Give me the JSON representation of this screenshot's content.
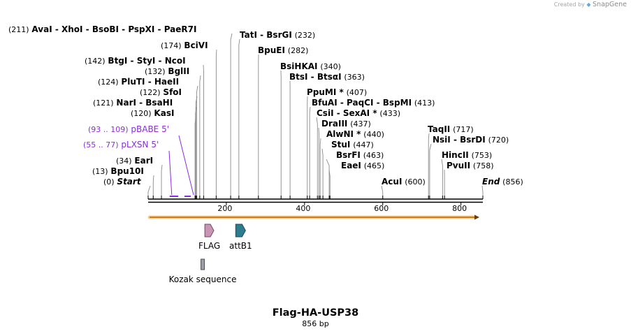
{
  "credit": {
    "prefix": "Created by",
    "brand": "SnapGene"
  },
  "plasmid": {
    "name": "Flag-HA-USP38",
    "length_label": "856 bp",
    "length": 856
  },
  "colors": {
    "backbone": "#000000",
    "feature_arrow": "#f5a623",
    "primer": "#8b2be2",
    "flag": "#c896b4",
    "attB1": "#2e7d8e",
    "kozak": "#9aa0a6"
  },
  "axis": {
    "ticks": [
      200,
      400,
      600,
      800
    ]
  },
  "site_labels": [
    {
      "id": "aval",
      "pos": "(211)",
      "name": "AvaI  - XhoI  - BsoBI  - PspXI  - PaeR7I",
      "cut": 211
    },
    {
      "id": "bcivi",
      "pos": "(174)",
      "name": "BciVI",
      "cut": 174
    },
    {
      "id": "tati",
      "pos": "(232)",
      "name": "TatI  - BsrGI",
      "cut": 232
    },
    {
      "id": "bpuei",
      "pos": "(282)",
      "name": "BpuEI",
      "cut": 282
    },
    {
      "id": "btgi",
      "pos": "(142)",
      "name": "BtgI  - StyI  - NcoI",
      "cut": 142
    },
    {
      "id": "bsihkai",
      "pos": "(340)",
      "name": "BsiHKAI",
      "cut": 340
    },
    {
      "id": "bglii",
      "pos": "(132)",
      "name": "BglII",
      "cut": 132
    },
    {
      "id": "btsi",
      "pos": "(363)",
      "name": "BtsI  - BtsαI",
      "cut": 363
    },
    {
      "id": "pluti",
      "pos": "(124)",
      "name": "PluTI  - HaeII",
      "cut": 124
    },
    {
      "id": "sfoi",
      "pos": "(122)",
      "name": "SfoI",
      "cut": 122
    },
    {
      "id": "ppumi",
      "pos": "(407)",
      "name": "PpuMI *",
      "cut": 407
    },
    {
      "id": "nari",
      "pos": "(121)",
      "name": "NarI  - BsaHI",
      "cut": 121
    },
    {
      "id": "bfuai",
      "pos": "(413)",
      "name": "BfuAI  - PaqCI  - BspMI",
      "cut": 413
    },
    {
      "id": "kasi",
      "pos": "(120)",
      "name": "KasI",
      "cut": 120
    },
    {
      "id": "csii",
      "pos": "(433)",
      "name": "CsiI  - SexAI *",
      "cut": 433
    },
    {
      "id": "draiii",
      "pos": "(437)",
      "name": "DraIII",
      "cut": 437
    },
    {
      "id": "alwni",
      "pos": "(440)",
      "name": "AlwNI *",
      "cut": 440
    },
    {
      "id": "taqii",
      "pos": "(717)",
      "name": "TaqII",
      "cut": 717
    },
    {
      "id": "stui",
      "pos": "(447)",
      "name": "StuI",
      "cut": 447
    },
    {
      "id": "nsii",
      "pos": "(720)",
      "name": "NsiI  - BsrDI",
      "cut": 720
    },
    {
      "id": "bsrfi",
      "pos": "(463)",
      "name": "BsrFI",
      "cut": 463
    },
    {
      "id": "earI",
      "pos": "(34)",
      "name": "EarI",
      "cut": 34
    },
    {
      "id": "hincii",
      "pos": "(753)",
      "name": "HincII",
      "cut": 753
    },
    {
      "id": "eaei",
      "pos": "(465)",
      "name": "EaeI",
      "cut": 465
    },
    {
      "id": "pvuii",
      "pos": "(758)",
      "name": "PvuII",
      "cut": 758
    },
    {
      "id": "bpu10i",
      "pos": "(13)",
      "name": "Bpu10I",
      "cut": 13
    },
    {
      "id": "start",
      "pos": "(0)",
      "name": "Start",
      "cut": 0
    },
    {
      "id": "acui",
      "pos": "(600)",
      "name": "AcuI",
      "cut": 600
    },
    {
      "id": "end",
      "pos": "(856)",
      "name": "End",
      "cut": 856
    }
  ],
  "primers": [
    {
      "id": "pbabe",
      "range": "(93 .. 109)",
      "name": "pBABE 5'",
      "start": 93,
      "end": 109
    },
    {
      "id": "plxsn",
      "range": "(55 .. 77)",
      "name": "pLXSN 5'",
      "start": 55,
      "end": 77
    }
  ],
  "features": [
    {
      "id": "flag",
      "name": "FLAG",
      "start": 145,
      "end": 168
    },
    {
      "id": "attb1",
      "name": "attB1",
      "start": 224,
      "end": 249
    },
    {
      "id": "kozak",
      "name": "Kozak sequence",
      "start": 135,
      "end": 144
    }
  ]
}
